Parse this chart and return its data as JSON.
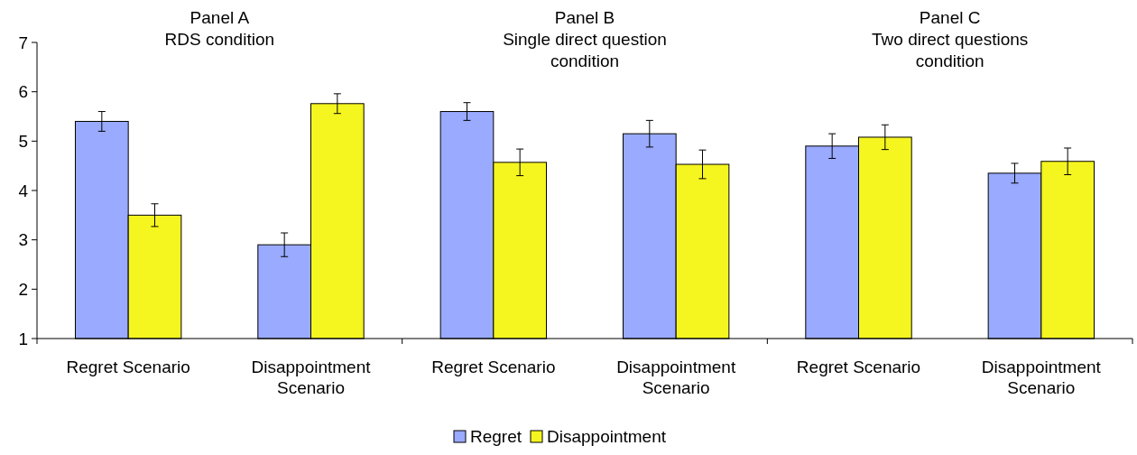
{
  "chart_data": {
    "type": "bar",
    "categories": [
      "Regret Scenario",
      "Disappointment Scenario",
      "Regret Scenario",
      "Disappointment Scenario",
      "Regret Scenario",
      "Disappointment Scenario"
    ],
    "series": [
      {
        "name": "Regret",
        "color": "#99aaff",
        "values": [
          5.4,
          2.9,
          5.6,
          5.15,
          4.9,
          4.35
        ],
        "errors": [
          0.2,
          0.24,
          0.18,
          0.27,
          0.25,
          0.2
        ]
      },
      {
        "name": "Disappointment",
        "color": "#f5f520",
        "values": [
          3.5,
          5.76,
          4.57,
          4.53,
          5.08,
          4.59
        ],
        "errors": [
          0.23,
          0.2,
          0.27,
          0.29,
          0.25,
          0.27
        ]
      }
    ],
    "annotations": [
      "Panel A\nRDS condition",
      "Panel B\nSingle direct question\ncondition",
      "Panel C\nTwo direct questions\ncondition"
    ],
    "ylim": [
      1,
      7
    ],
    "yticks": [
      1,
      2,
      3,
      4,
      5,
      6,
      7
    ],
    "grid": false,
    "legend": "bottom"
  }
}
